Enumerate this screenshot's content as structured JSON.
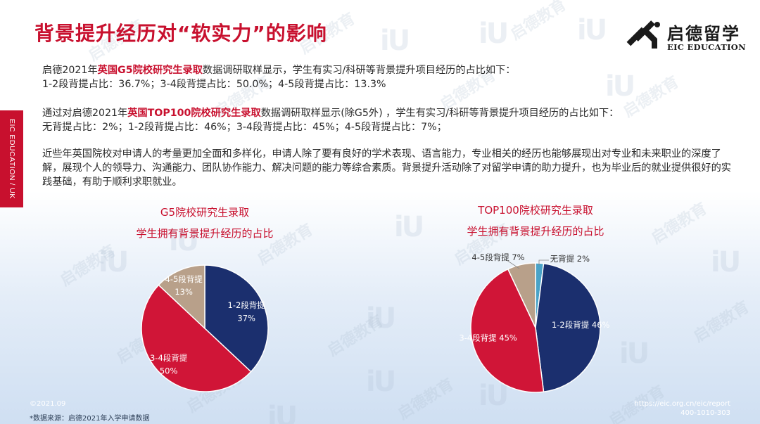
{
  "page": {
    "title": "背景提升经历对“软实力”的影响",
    "side_label": "EIC EDUCATION / UK"
  },
  "logo": {
    "name_cn": "启德留学",
    "name_en": "EIC EDUCATION",
    "brand_color": "#c8102e",
    "icon": "eic-logo-icon"
  },
  "paragraph1": {
    "prefix": "启德2021年",
    "highlight": "英国G5院校研究生录取",
    "suffix": "数据调研取样显示，学生有实习/科研等背景提升项目经历的占比如下：",
    "line2": "1-2段背提占比：36.7%；3-4段背提占比：50.0%；4-5段背提占比：13.3%"
  },
  "paragraph2": {
    "prefix": "通过对启德2021年",
    "highlight": "英国TOP100院校研究生录取",
    "suffix": "数据调研取样显示(除G5外) ，学生有实习/科研等背景提升项目经历的占比如下：",
    "line2": "无背提占比：2%；1-2段背提占比：46%；3-4段背提占比：45%；4-5段背提占比：7%；"
  },
  "paragraph3": {
    "text": "近些年英国院校对申请人的考量更加全面和多样化，申请人除了要有良好的学术表现、语言能力，专业相关的经历也能够展现出对专业和未来职业的深度了解，展现个人的领导力、沟通能力、团队协作能力、解决问题的能力等综合素质。背景提升活动除了对留学申请的助力提升，也为毕业后的就业提供很好的实践基础，有助于顺利求职就业。"
  },
  "chart_data": [
    {
      "type": "pie",
      "title": "G5院校研究生录取",
      "subtitle": "学生拥有背景提升经历的占比",
      "slices": [
        {
          "label": "1-2段背提",
          "value": 37,
          "value_label": "37%",
          "color": "#1b2f6e",
          "label_color": "#ffffff"
        },
        {
          "label": "3-4段背提",
          "value": 50,
          "value_label": "50%",
          "color": "#d01537",
          "label_color": "#ffffff"
        },
        {
          "label": "4-5段背提",
          "value": 13,
          "value_label": "13%",
          "color": "#b8a08a",
          "label_color": "#ffffff"
        }
      ]
    },
    {
      "type": "pie",
      "title": "TOP100院校研究生录取",
      "subtitle": "学生拥有背景提升经历的占比",
      "slices": [
        {
          "label": "无背提",
          "value": 2,
          "value_label": "2%",
          "color": "#4aa3c8",
          "label_color": "#333333"
        },
        {
          "label": "1-2段背提",
          "value": 46,
          "value_label": "46%",
          "color": "#1b2f6e",
          "label_color": "#ffffff"
        },
        {
          "label": "3-4段背提",
          "value": 45,
          "value_label": "45%",
          "color": "#d01537",
          "label_color": "#ffffff"
        },
        {
          "label": "4-5段背提",
          "value": 7,
          "value_label": "7%",
          "color": "#b8a08a",
          "label_color": "#333333"
        }
      ]
    }
  ],
  "footer": {
    "date": "©2021.09",
    "source": "*数据来源：启德2021年入学申请数据",
    "url": "https://eic.org.cn/eic/report",
    "phone": "400-1010-303"
  },
  "watermark": {
    "text": "启德教育",
    "mark": "iU"
  }
}
